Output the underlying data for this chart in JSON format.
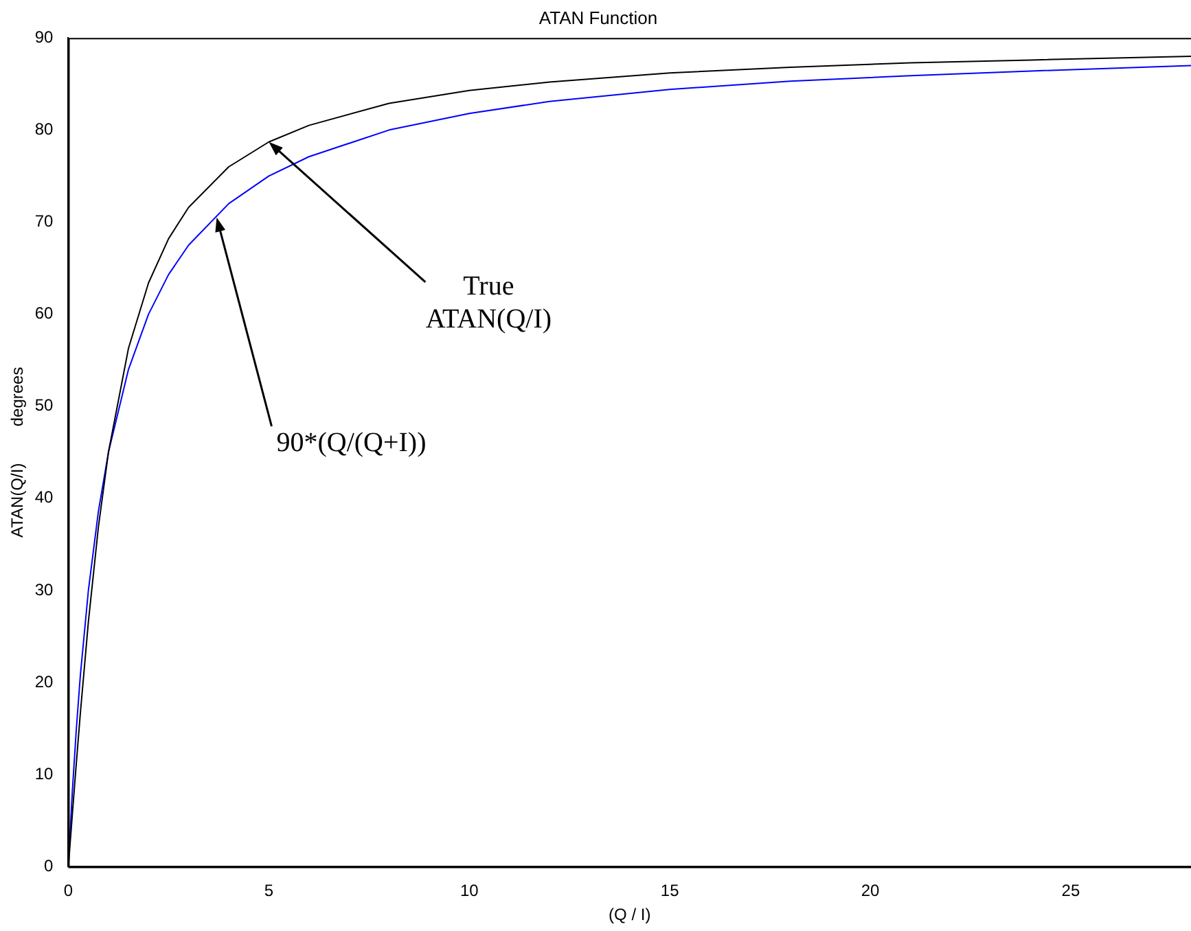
{
  "chart_data": {
    "type": "line",
    "title": "ATAN Function",
    "xlabel": "(Q / I)",
    "ylabel": "ATAN(Q/I)        degrees",
    "xlim": [
      0,
      28
    ],
    "xticks": [
      0,
      5,
      10,
      15,
      20,
      25
    ],
    "ylim": [
      0,
      90
    ],
    "yticks": [
      0,
      10,
      20,
      30,
      40,
      50,
      60,
      70,
      80,
      90
    ],
    "grid": false,
    "legend": false,
    "x": [
      0,
      0.1,
      0.2,
      0.3,
      0.5,
      0.75,
      1,
      1.5,
      2,
      2.5,
      3,
      4,
      5,
      6,
      8,
      10,
      12,
      15,
      18,
      21,
      24,
      28
    ],
    "series": [
      {
        "color": "#000000",
        "values": [
          0,
          5.7,
          11.3,
          16.7,
          26.6,
          36.9,
          45,
          56.3,
          63.4,
          68.2,
          71.6,
          76,
          78.7,
          80.5,
          82.9,
          84.3,
          85.2,
          86.2,
          86.8,
          87.3,
          87.6,
          88
        ]
      },
      {
        "color": "#0000ff",
        "values": [
          0,
          8.2,
          15,
          20.8,
          30,
          38.6,
          45,
          54,
          60,
          64.3,
          67.5,
          72,
          75,
          77.1,
          80,
          81.8,
          83.1,
          84.4,
          85.3,
          85.9,
          86.4,
          87
        ]
      }
    ],
    "annotations": [
      {
        "text": "True\nATAN(Q/I)",
        "x": 5,
        "y": 78.7
      },
      {
        "text": "90*(Q/(Q+I))",
        "x": 3.7,
        "y": 70.5
      }
    ]
  }
}
